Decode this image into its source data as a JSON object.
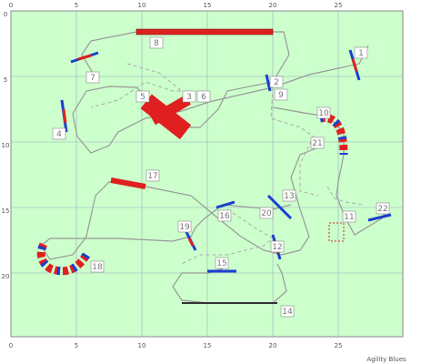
{
  "axes": {
    "top": [
      "0",
      "5",
      "10",
      "15",
      "20",
      "25"
    ],
    "bottom": [
      "0",
      "5",
      "10",
      "15",
      "20",
      "25"
    ],
    "left": [
      "0",
      "5",
      "10",
      "15",
      "20"
    ]
  },
  "obstacles": [
    "1",
    "2",
    "3",
    "4",
    "5",
    "6",
    "7",
    "8",
    "9",
    "10",
    "11",
    "12",
    "13",
    "14",
    "15",
    "16",
    "17",
    "18",
    "19",
    "20",
    "21",
    "22"
  ],
  "footer": "Agility Blues"
}
